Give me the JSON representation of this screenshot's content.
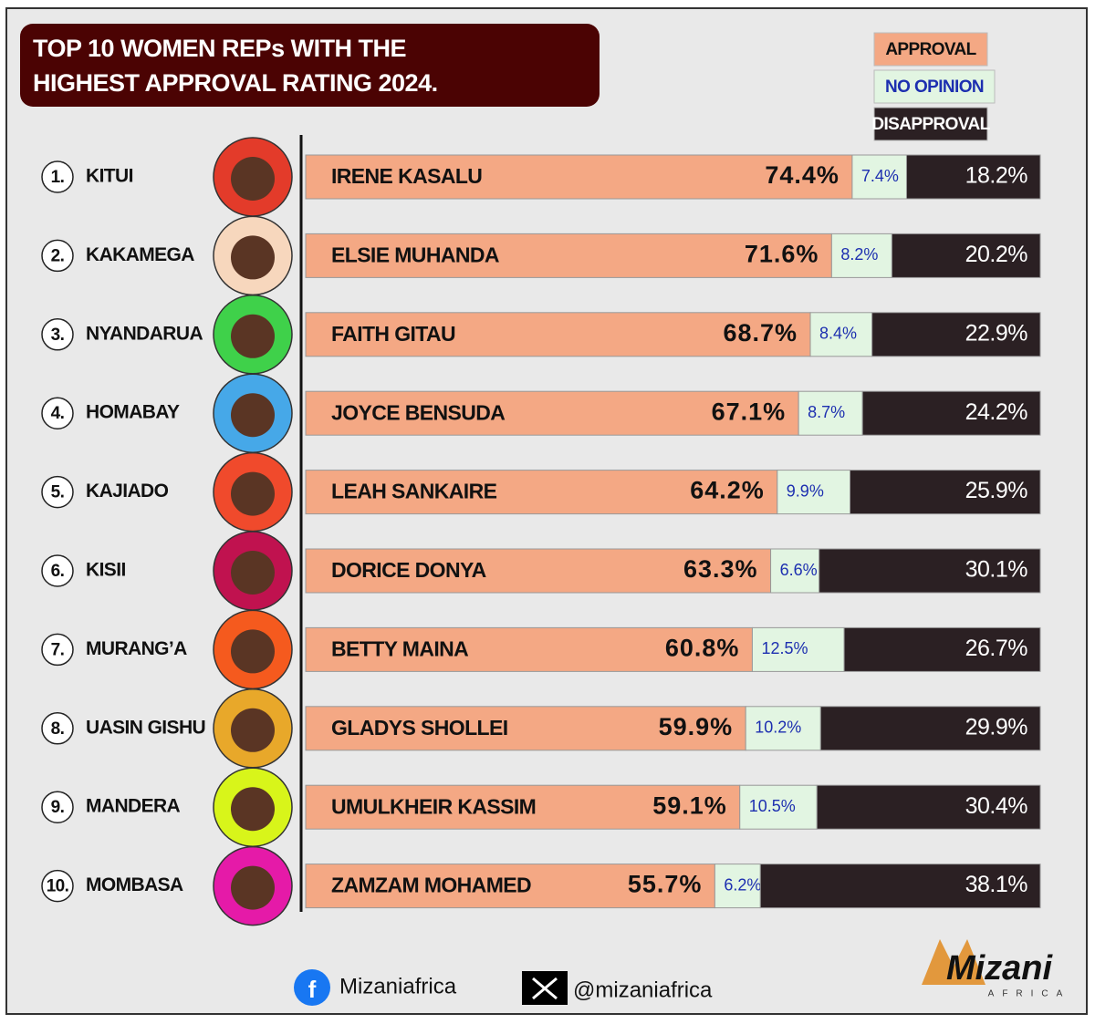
{
  "chart_data": {
    "type": "stacked-bar",
    "title": "TOP 10 WOMEN REPs WITH THE HIGHEST APPROVAL RATING 2024.",
    "ranks": [
      "1.",
      "2.",
      "3.",
      "4.",
      "5.",
      "6.",
      "7.",
      "8.",
      "9.",
      "10."
    ],
    "counties": [
      "KITUI",
      "KAKAMEGA",
      "NYANDARUA",
      "HOMABAY",
      "KAJIADO",
      "KISII",
      "MURANG’A",
      "UASIN GISHU",
      "MANDERA",
      "MOMBASA"
    ],
    "categories": [
      "IRENE KASALU",
      "ELSIE MUHANDA",
      "FAITH GITAU",
      "JOYCE BENSUDA",
      "LEAH SANKAIRE",
      "DORICE DONYA",
      "BETTY MAINA",
      "GLADYS SHOLLEI",
      "UMULKHEIR KASSIM",
      "ZAMZAM MOHAMED"
    ],
    "series": [
      {
        "name": "APPROVAL",
        "color": "#f4a884",
        "text_color": "#111111",
        "values": [
          74.4,
          71.6,
          68.7,
          67.1,
          64.2,
          63.3,
          60.8,
          59.9,
          59.1,
          55.7
        ],
        "value_labels": [
          "74.4%",
          "71.6%",
          "68.7%",
          "67.1%",
          "64.2%",
          "63.3%",
          "60.8%",
          "59.9%",
          "59.1%",
          "55.7%"
        ]
      },
      {
        "name": "NO OPINION",
        "color": "#e2f5e2",
        "text_color": "#1d2fb0",
        "values": [
          7.4,
          8.2,
          8.4,
          8.7,
          9.9,
          6.6,
          12.5,
          10.2,
          10.5,
          6.2
        ],
        "value_labels": [
          "7.4%",
          "8.2%",
          "8.4%",
          "8.7%",
          "9.9%",
          "6.6%",
          "12.5%",
          "10.2%",
          "10.5%",
          "6.2%"
        ]
      },
      {
        "name": "DISAPPROVAL",
        "color": "#2b2023",
        "text_color": "#ffffff",
        "values": [
          18.2,
          20.2,
          22.9,
          24.2,
          25.9,
          30.1,
          26.7,
          29.9,
          30.4,
          38.1
        ],
        "value_labels": [
          "18.2%",
          "20.2%",
          "22.9%",
          "24.2%",
          "25.9%",
          "30.1%",
          "26.7%",
          "29.9%",
          "30.4%",
          "38.1%"
        ]
      }
    ],
    "xlim": [
      0,
      100
    ]
  },
  "footer": {
    "facebook": "Mizaniafrica",
    "x_handle": "@mizaniafrica",
    "brand": "Mizani",
    "brand_sub": "AFRICA"
  }
}
